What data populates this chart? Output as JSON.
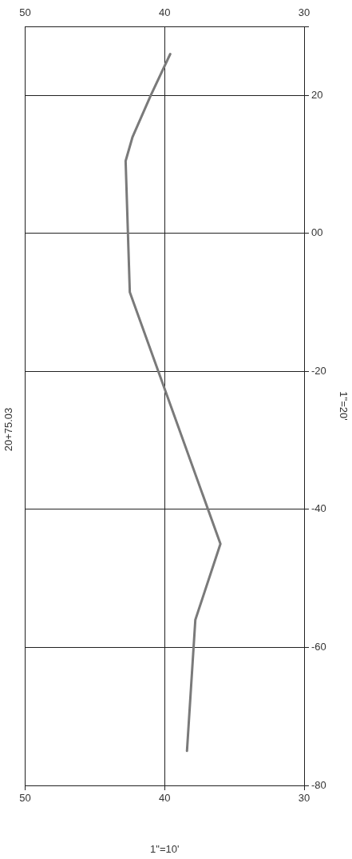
{
  "chart_data": {
    "type": "line",
    "title": "20+75.03",
    "xlabel": "1\"=10'",
    "ylabel": "1\"=20'",
    "series": [
      {
        "color": "#7a7a7a",
        "x": [
          38.4,
          37.8,
          36.0,
          42.5,
          42.8,
          42.3,
          41.0,
          39.6
        ],
        "values": [
          -75,
          -56,
          -45,
          -8.5,
          10.5,
          14,
          20,
          26
        ]
      }
    ],
    "xlim": [
      50,
      30
    ],
    "xticks": [
      50,
      40,
      30
    ],
    "x2lim": [
      50,
      30
    ],
    "x2ticks": [
      50,
      40,
      30
    ],
    "ylim": [
      -80,
      30
    ],
    "yticks": [
      -80,
      -60,
      -40,
      -20,
      {
        "value": 0,
        "label": "00"
      },
      20,
      {
        "value": 30,
        "label": null
      }
    ],
    "grid": true,
    "legend": false,
    "marker": "none",
    "line_style": "solid"
  }
}
